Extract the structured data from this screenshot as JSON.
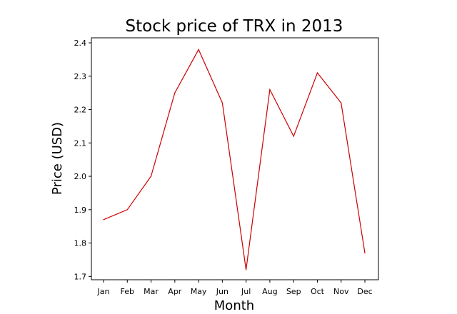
{
  "chart_data": {
    "type": "line",
    "title": "Stock price of TRX in 2013",
    "xlabel": "Month",
    "ylabel": "Price (USD)",
    "categories": [
      "Jan",
      "Feb",
      "Mar",
      "Apr",
      "May",
      "Jun",
      "Jul",
      "Aug",
      "Sep",
      "Oct",
      "Nov",
      "Dec"
    ],
    "series": [
      {
        "values": [
          1.87,
          1.9,
          2.0,
          2.25,
          2.38,
          2.22,
          1.72,
          2.26,
          2.12,
          2.31,
          2.22,
          1.77
        ],
        "color": "#cc0000"
      }
    ],
    "ylim": [
      1.69,
      2.415
    ],
    "yticks": [
      1.7,
      1.8,
      1.9,
      2.0,
      2.1,
      2.2,
      2.3,
      2.4
    ],
    "ytick_labels": [
      "1.7",
      "1.8",
      "1.9",
      "2.0",
      "2.1",
      "2.2",
      "2.3",
      "2.4"
    ],
    "grid": false,
    "legend": "none"
  }
}
